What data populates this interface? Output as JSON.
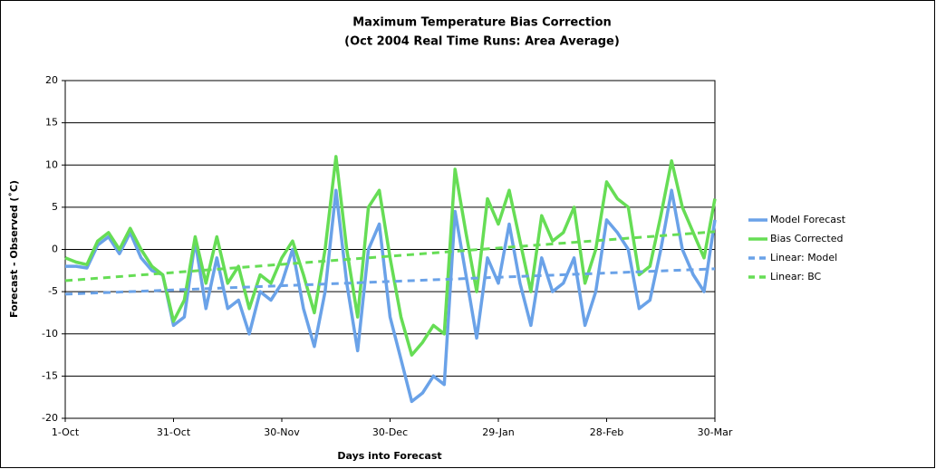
{
  "chart_data": {
    "type": "line",
    "title": "Maximum Temperature Bias Correction",
    "subtitle": "(Oct 2004 Real Time Runs: Area Average)",
    "x_label": "Days into Forecast",
    "y_label": "Forecast - Observed (˚C)",
    "x": [
      0,
      3,
      6,
      9,
      12,
      15,
      18,
      21,
      24,
      27,
      30,
      33,
      36,
      39,
      42,
      45,
      48,
      51,
      54,
      57,
      60,
      63,
      66,
      69,
      72,
      75,
      78,
      81,
      84,
      87,
      90,
      93,
      96,
      99,
      102,
      105,
      108,
      111,
      114,
      117,
      120,
      123,
      126,
      129,
      132,
      135,
      138,
      141,
      144,
      147,
      150,
      153,
      156,
      159,
      162,
      165,
      168,
      171,
      174,
      177,
      180
    ],
    "series": [
      {
        "name": "Model Forecast",
        "color": "#6aa2e8",
        "dash": false,
        "values": [
          -2,
          -2,
          -2.2,
          0.5,
          1.5,
          -0.5,
          2,
          -1,
          -2.5,
          -3,
          -9,
          -8,
          1,
          -7,
          -1,
          -7,
          -6,
          -10,
          -5,
          -6,
          -4,
          0,
          -7,
          -11.5,
          -5,
          7,
          -4,
          -12,
          0,
          3,
          -8,
          -13,
          -18,
          -17,
          -15,
          -16,
          4.5,
          -3,
          -10.5,
          -1,
          -4,
          3,
          -4,
          -9,
          -1,
          -5,
          -4,
          -1,
          -9,
          -5,
          3.5,
          2,
          0,
          -7,
          -6,
          0,
          7,
          0,
          -3,
          -5,
          3.5
        ]
      },
      {
        "name": "Bias Corrected",
        "color": "#66dd55",
        "dash": false,
        "values": [
          -1,
          -1.5,
          -1.8,
          1,
          2,
          0,
          2.5,
          0,
          -2,
          -3,
          -8.5,
          -6,
          1.5,
          -4,
          1.5,
          -4,
          -2,
          -7,
          -3,
          -4,
          -1,
          1,
          -3,
          -7.5,
          0,
          11,
          0,
          -8,
          5,
          7,
          -1,
          -8,
          -12.5,
          -11,
          -9,
          -10,
          9.5,
          2,
          -5,
          6,
          3,
          7,
          1,
          -5,
          4,
          1,
          2,
          5,
          -4,
          0,
          8,
          6,
          5,
          -3,
          -2,
          4,
          10.5,
          5,
          2,
          -1,
          6
        ]
      },
      {
        "name": "Linear: Model",
        "color": "#6aa2e8",
        "dash": true,
        "x": [
          0,
          180
        ],
        "values": [
          -5.3,
          -2.3
        ]
      },
      {
        "name": "Linear: BC",
        "color": "#66dd55",
        "dash": true,
        "x": [
          0,
          180
        ],
        "values": [
          -3.7,
          2.1
        ]
      }
    ],
    "xlim": [
      0,
      180
    ],
    "xticks": [
      {
        "value": 0,
        "label": "1-Oct"
      },
      {
        "value": 30,
        "label": "31-Oct"
      },
      {
        "value": 60,
        "label": "30-Nov"
      },
      {
        "value": 90,
        "label": "30-Dec"
      },
      {
        "value": 120,
        "label": "29-Jan"
      },
      {
        "value": 150,
        "label": "28-Feb"
      },
      {
        "value": 180,
        "label": "30-Mar"
      }
    ],
    "ylim": [
      -20,
      20
    ],
    "yticks": [
      -20,
      -15,
      -10,
      -5,
      0,
      5,
      10,
      15,
      20
    ],
    "grid": true,
    "legend": "right"
  }
}
